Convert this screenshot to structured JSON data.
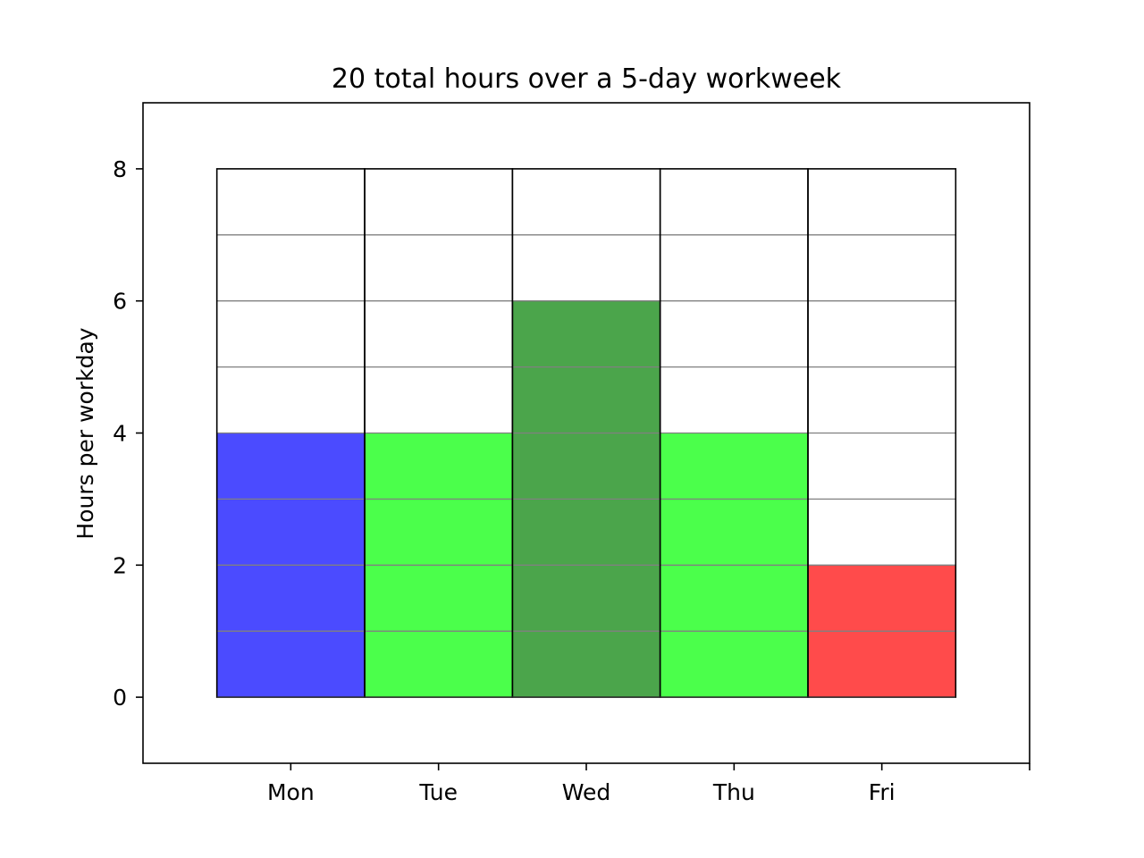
{
  "chart_data": {
    "type": "bar",
    "title": "20 total hours over a 5-day workweek",
    "ylabel": "Hours per workday",
    "xlabel": "",
    "categories": [
      "Mon",
      "Tue",
      "Wed",
      "Thu",
      "Fri"
    ],
    "values": [
      4,
      4,
      6,
      4,
      2
    ],
    "bar_colors": [
      "#4b4bff",
      "#4bff4b",
      "#4ba54b",
      "#4bff4b",
      "#ff4b4b"
    ],
    "capacity": 8,
    "ylim": [
      -1,
      9
    ],
    "xlim": [
      -1,
      5
    ],
    "yticks": [
      0,
      2,
      4,
      6,
      8
    ],
    "grid_interval": 1,
    "grid": true,
    "legend": "none"
  }
}
